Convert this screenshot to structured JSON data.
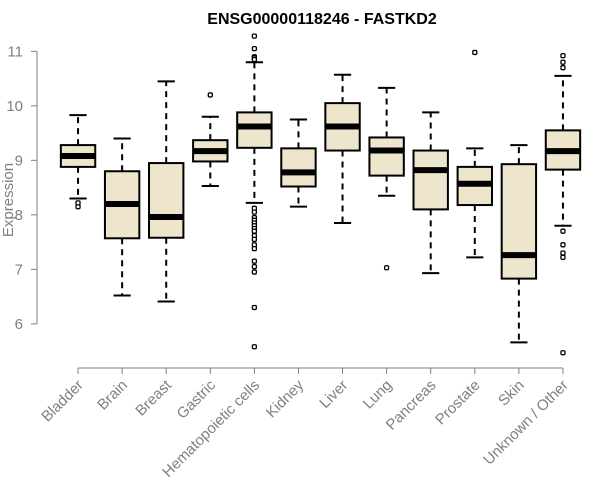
{
  "chart_data": {
    "type": "boxplot",
    "title": "ENSG00000118246 - FASTKD2",
    "xlabel": "",
    "ylabel": "Expression",
    "ylim": [
      5.3,
      11.3
    ],
    "yticks": [
      6,
      7,
      8,
      9,
      10,
      11
    ],
    "grid": false,
    "colors": {
      "box_fill": "#ede6cc",
      "stroke": "#000000",
      "axis": "#808080"
    },
    "categories": [
      "Bladder",
      "Brain",
      "Breast",
      "Gastric",
      "Hematopoietic cells",
      "Kidney",
      "Liver",
      "Lung",
      "Pancreas",
      "Prostate",
      "Skin",
      "Unknown / Other"
    ],
    "boxes": [
      {
        "category": "Bladder",
        "whisker_low": 8.3,
        "q1": 8.88,
        "median": 9.08,
        "q3": 9.28,
        "whisker_high": 9.83,
        "outliers": [
          8.15,
          8.22
        ]
      },
      {
        "category": "Brain",
        "whisker_low": 6.52,
        "q1": 7.57,
        "median": 8.2,
        "q3": 8.8,
        "whisker_high": 9.4,
        "outliers": []
      },
      {
        "category": "Breast",
        "whisker_low": 6.41,
        "q1": 7.58,
        "median": 7.96,
        "q3": 8.95,
        "whisker_high": 10.45,
        "outliers": []
      },
      {
        "category": "Gastric",
        "whisker_low": 8.53,
        "q1": 8.98,
        "median": 9.17,
        "q3": 9.37,
        "whisker_high": 9.8,
        "outliers": [
          10.2
        ]
      },
      {
        "category": "Hematopoietic cells",
        "whisker_low": 8.22,
        "q1": 9.23,
        "median": 9.62,
        "q3": 9.88,
        "whisker_high": 10.8,
        "outliers": [
          11.28,
          11.05,
          10.9,
          10.88,
          10.85,
          8.12,
          8.05,
          7.95,
          7.9,
          7.85,
          7.8,
          7.75,
          7.7,
          7.62,
          7.55,
          7.45,
          7.38,
          7.15,
          7.05,
          6.95,
          6.3,
          5.58
        ]
      },
      {
        "category": "Kidney",
        "whisker_low": 8.15,
        "q1": 8.52,
        "median": 8.78,
        "q3": 9.22,
        "whisker_high": 9.75,
        "outliers": []
      },
      {
        "category": "Liver",
        "whisker_low": 7.85,
        "q1": 9.18,
        "median": 9.62,
        "q3": 10.05,
        "whisker_high": 10.57,
        "outliers": []
      },
      {
        "category": "Lung",
        "whisker_low": 8.35,
        "q1": 8.72,
        "median": 9.18,
        "q3": 9.42,
        "whisker_high": 10.33,
        "outliers": [
          7.03
        ]
      },
      {
        "category": "Pancreas",
        "whisker_low": 6.93,
        "q1": 8.1,
        "median": 8.82,
        "q3": 9.18,
        "whisker_high": 9.88,
        "outliers": []
      },
      {
        "category": "Prostate",
        "whisker_low": 7.22,
        "q1": 8.18,
        "median": 8.57,
        "q3": 8.88,
        "whisker_high": 9.22,
        "outliers": [
          10.98
        ]
      },
      {
        "category": "Skin",
        "whisker_low": 5.66,
        "q1": 6.83,
        "median": 7.26,
        "q3": 8.93,
        "whisker_high": 9.28,
        "outliers": []
      },
      {
        "category": "Unknown / Other",
        "whisker_low": 7.8,
        "q1": 8.83,
        "median": 9.17,
        "q3": 9.55,
        "whisker_high": 10.55,
        "outliers": [
          10.92,
          10.8,
          10.7,
          7.7,
          7.45,
          7.3,
          7.22,
          5.47
        ]
      }
    ]
  }
}
